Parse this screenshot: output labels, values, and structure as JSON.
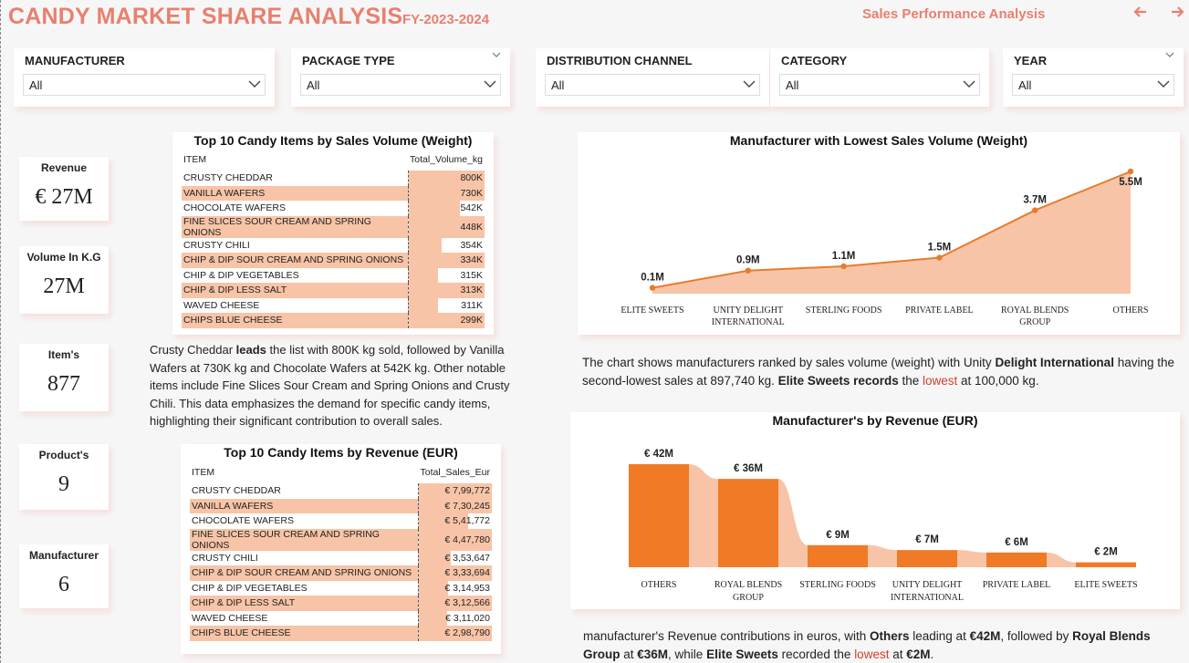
{
  "header": {
    "title": "CANDY MARKET SHARE ANALYSIS",
    "fy": "FY-2023-2024",
    "link": "Sales Performance Analysis",
    "back_icon": "arrow-left-icon",
    "forward_icon": "arrow-right-icon",
    "accent_color": "#e8806f"
  },
  "slicers": [
    {
      "label": "MANUFACTURER",
      "value": "All"
    },
    {
      "label": "PACKAGE TYPE",
      "value": "All"
    },
    {
      "label": "DISTRIBUTION CHANNEL",
      "value": "All"
    },
    {
      "label": "CATEGORY",
      "value": "All"
    },
    {
      "label": "YEAR",
      "value": "All"
    }
  ],
  "kpis": [
    {
      "label": "Revenue",
      "value": "€ 27M"
    },
    {
      "label": "Volume In K.G",
      "value": "27M"
    },
    {
      "label": "Item's",
      "value": "877"
    },
    {
      "label": "Product's",
      "value": "9"
    },
    {
      "label": "Manufacturer",
      "value": "6"
    }
  ],
  "volume_table": {
    "title": "Top 10 Candy Items by Sales Volume (Weight)",
    "col_item": "ITEM",
    "col_value": "Total_Volume_kg",
    "rows": [
      {
        "item": "CRUSTY CHEDDAR",
        "value": "800K",
        "num": 800
      },
      {
        "item": "VANILLA WAFERS",
        "value": "730K",
        "num": 730
      },
      {
        "item": "CHOCOLATE WAFERS",
        "value": "542K",
        "num": 542
      },
      {
        "item": "FINE SLICES SOUR CREAM AND SPRING ONIONS",
        "value": "448K",
        "num": 448
      },
      {
        "item": "CRUSTY CHILI",
        "value": "354K",
        "num": 354
      },
      {
        "item": "CHIP & DIP SOUR CREAM AND SPRING ONIONS",
        "value": "334K",
        "num": 334
      },
      {
        "item": "CHIP & DIP VEGETABLES",
        "value": "315K",
        "num": 315
      },
      {
        "item": "CHIP & DIP LESS SALT",
        "value": "313K",
        "num": 313
      },
      {
        "item": "WAVED CHEESE",
        "value": "311K",
        "num": 311
      },
      {
        "item": "CHIPS BLUE CHEESE",
        "value": "299K",
        "num": 299
      }
    ]
  },
  "volume_text": {
    "p1": "Crusty Cheddar ",
    "b1": "leads",
    "p2": " the list with 800K kg sold, followed by Vanilla Wafers at 730K kg and Chocolate Wafers at 542K kg. Other notable items include Fine Slices Sour Cream and Spring Onions and Crusty Chili. This data emphasizes the demand for specific candy items, highlighting their significant contribution to overall sales."
  },
  "revenue_table": {
    "title": "Top 10 Candy Items by Revenue (EUR)",
    "col_item": "ITEM",
    "col_value": "Total_Sales_Eur",
    "rows": [
      {
        "item": "CRUSTY CHEDDAR",
        "value": "€ 7,99,772",
        "num": 799772
      },
      {
        "item": "VANILLA WAFERS",
        "value": "€ 7,30,245",
        "num": 730245
      },
      {
        "item": "CHOCOLATE WAFERS",
        "value": "€ 5,41,772",
        "num": 541772
      },
      {
        "item": "FINE SLICES SOUR CREAM AND SPRING ONIONS",
        "value": "€ 4,47,780",
        "num": 447780
      },
      {
        "item": "CRUSTY CHILI",
        "value": "€ 3,53,647",
        "num": 353647
      },
      {
        "item": "CHIP & DIP SOUR CREAM AND SPRING ONIONS",
        "value": "€ 3,33,694",
        "num": 333694
      },
      {
        "item": "CHIP & DIP VEGETABLES",
        "value": "€ 3,14,953",
        "num": 314953
      },
      {
        "item": "CHIP & DIP LESS SALT",
        "value": "€ 3,12,566",
        "num": 312566
      },
      {
        "item": "WAVED CHEESE",
        "value": "€ 3,11,020",
        "num": 311020
      },
      {
        "item": "CHIPS BLUE CHEESE",
        "value": "€ 2,98,790",
        "num": 298790
      }
    ]
  },
  "chart_data": [
    {
      "type": "area",
      "title": "Manufacturer with Lowest Sales Volume (Weight)",
      "categories": [
        "ELITE SWEETS",
        "UNITY DELIGHT INTERNATIONAL",
        "STERLING FOODS",
        "PRIVATE LABEL",
        "ROYAL BLENDS GROUP",
        "OTHERS"
      ],
      "values": [
        0.1,
        0.9,
        1.1,
        1.5,
        3.7,
        5.5
      ],
      "data_labels": [
        "0.1M",
        "0.9M",
        "1.1M",
        "1.5M",
        "3.7M",
        "5.5M"
      ],
      "color": "#e87b2c",
      "fill_color": "#f8c4a7"
    },
    {
      "type": "bar",
      "title": "Manufacturer's by Revenue (EUR)",
      "categories": [
        "OTHERS",
        "ROYAL BLENDS GROUP",
        "STERLING FOODS",
        "UNITY DELIGHT INTERNATIONAL",
        "PRIVATE LABEL",
        "ELITE SWEETS"
      ],
      "values": [
        42,
        36,
        9,
        7,
        6,
        2
      ],
      "data_labels": [
        "€ 42M",
        "€ 36M",
        "€ 9M",
        "€ 7M",
        "€ 6M",
        "€ 2M"
      ],
      "color": "#f07a26",
      "ribbon_color": "#f8c4a7"
    }
  ],
  "area_text": {
    "p1": "The chart shows manufacturers ranked by sales volume (weight)  with Unity ",
    "b1": "Delight International",
    "p2": " having the second-lowest sales at 897,740 kg. ",
    "b2": "Elite Sweets records",
    "p3": " the ",
    "h1": "lowest",
    "p4": " at 100,000 kg."
  },
  "ribbon_text": {
    "p1": "manufacturer's Revenue contributions in euros, with ",
    "b1": "Others",
    "p2": " leading at ",
    "b2": "€42M",
    "p3": ", followed by ",
    "b3": "Royal Blends Group",
    "p4": " at ",
    "b4": "€36M",
    "p5": ", while ",
    "b5": "Elite Sweets",
    "p6": " recorded the ",
    "h1": "lowest",
    "p7": " at ",
    "b6": "€2M",
    "p8": "."
  }
}
